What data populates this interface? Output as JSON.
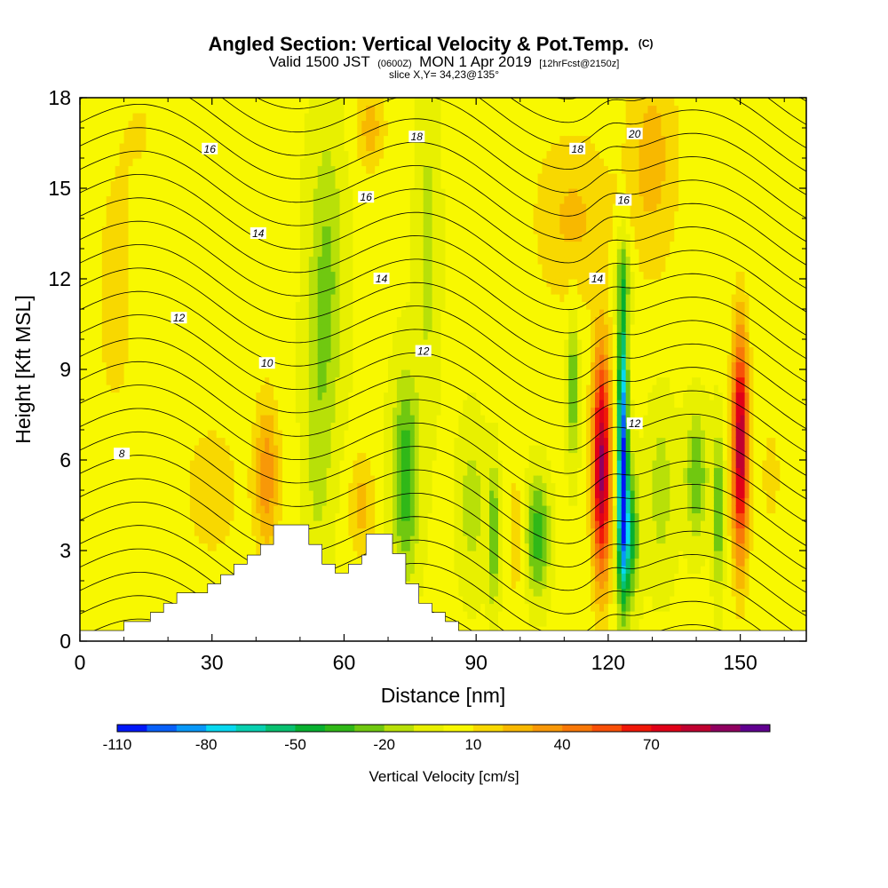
{
  "title": {
    "main": "Angled Section: Vertical Velocity & Pot.Temp.",
    "main_unit": "(C)",
    "valid_prefix": "Valid 1500 JST",
    "valid_utc": "(0600Z)",
    "valid_date": "MON 1 Apr 2019",
    "forecast": "[12hrFcst@2150z]",
    "slice": "slice X,Y= 34,23@135°"
  },
  "chart_data": {
    "type": "heatmap",
    "xlabel": "Distance [nm]",
    "ylabel": "Height [Kft MSL]",
    "xlim": [
      0,
      165
    ],
    "ylim": [
      0,
      18
    ],
    "xticks": [
      "0",
      "30",
      "60",
      "90",
      "120",
      "150"
    ],
    "yticks": [
      "0",
      "3",
      "6",
      "9",
      "12",
      "15",
      "18"
    ],
    "colorbar": {
      "label": "Vertical Velocity [cm/s]",
      "tick_labels": [
        "-110",
        "-80",
        "-50",
        "-20",
        "10",
        "40",
        "70"
      ],
      "levels_min": -110,
      "levels_step": 10,
      "colors": [
        "#0018f8",
        "#0860f8",
        "#0898f8",
        "#08d8f0",
        "#08d0b0",
        "#08c070",
        "#08b030",
        "#30b818",
        "#70c810",
        "#b8e008",
        "#e8f000",
        "#f8f800",
        "#f8d800",
        "#f8b800",
        "#f89808",
        "#f87808",
        "#f85008",
        "#f01808",
        "#e00018",
        "#c00030",
        "#900060",
        "#600090"
      ]
    },
    "contours": {
      "field": "Potential temperature",
      "labels": [
        {
          "text": "8",
          "x": 9.5,
          "y": 6.2
        },
        {
          "text": "10",
          "x": 42.5,
          "y": 9.2
        },
        {
          "text": "12",
          "x": 22.5,
          "y": 10.7
        },
        {
          "text": "14",
          "x": 40.5,
          "y": 13.5
        },
        {
          "text": "16",
          "x": 29.5,
          "y": 16.3
        },
        {
          "text": "16",
          "x": 65.0,
          "y": 14.7
        },
        {
          "text": "18",
          "x": 76.5,
          "y": 16.7
        },
        {
          "text": "14",
          "x": 68.5,
          "y": 12.0
        },
        {
          "text": "12",
          "x": 78.0,
          "y": 9.6
        },
        {
          "text": "14",
          "x": 117.5,
          "y": 12.0
        },
        {
          "text": "18",
          "x": 113.0,
          "y": 16.3
        },
        {
          "text": "16",
          "x": 123.5,
          "y": 14.6
        },
        {
          "text": "20",
          "x": 126.0,
          "y": 16.8
        },
        {
          "text": "12",
          "x": 126.0,
          "y": 7.2
        }
      ]
    },
    "terrain_steps": [
      [
        0,
        0.35
      ],
      [
        10,
        0.35
      ],
      [
        10,
        0.65
      ],
      [
        16,
        0.65
      ],
      [
        16,
        0.95
      ],
      [
        19,
        0.95
      ],
      [
        19,
        1.25
      ],
      [
        22,
        1.25
      ],
      [
        22,
        1.6
      ],
      [
        29,
        1.6
      ],
      [
        29,
        1.9
      ],
      [
        32,
        1.9
      ],
      [
        32,
        2.2
      ],
      [
        35,
        2.2
      ],
      [
        35,
        2.55
      ],
      [
        38,
        2.55
      ],
      [
        38,
        2.85
      ],
      [
        41,
        2.85
      ],
      [
        41,
        3.2
      ],
      [
        44,
        3.2
      ],
      [
        44,
        3.85
      ],
      [
        52,
        3.85
      ],
      [
        52,
        3.2
      ],
      [
        55,
        3.2
      ],
      [
        55,
        2.55
      ],
      [
        58,
        2.55
      ],
      [
        58,
        2.25
      ],
      [
        61,
        2.25
      ],
      [
        61,
        2.55
      ],
      [
        64,
        2.55
      ],
      [
        64,
        2.85
      ],
      [
        65,
        2.85
      ],
      [
        65,
        3.55
      ],
      [
        71,
        3.55
      ],
      [
        71,
        2.9
      ],
      [
        74,
        2.9
      ],
      [
        74,
        1.9
      ],
      [
        77,
        1.9
      ],
      [
        77,
        1.25
      ],
      [
        80,
        1.25
      ],
      [
        80,
        0.95
      ],
      [
        83,
        0.95
      ],
      [
        83,
        0.65
      ],
      [
        86,
        0.65
      ],
      [
        86,
        0.35
      ],
      [
        165,
        0.35
      ]
    ],
    "blobs": [
      {
        "x": 8,
        "y": 11.5,
        "sx": 6,
        "sy": 6,
        "w": 11
      },
      {
        "x": 30,
        "y": 5,
        "sx": 8,
        "sy": 3,
        "w": 12
      },
      {
        "x": 42.5,
        "y": 5.5,
        "sx": 2.8,
        "sy": 2.6,
        "w": 34
      },
      {
        "x": 56,
        "y": 12,
        "sx": 4,
        "sy": 5,
        "w": -25
      },
      {
        "x": 54,
        "y": 6,
        "sx": 3,
        "sy": 4,
        "w": -14
      },
      {
        "x": 64,
        "y": 4.5,
        "sx": 3,
        "sy": 1.8,
        "w": 22
      },
      {
        "x": 74,
        "y": 5.5,
        "sx": 3,
        "sy": 3.2,
        "w": -40
      },
      {
        "x": 66,
        "y": 17,
        "sx": 3.5,
        "sy": 1.5,
        "w": 22
      },
      {
        "x": 79,
        "y": 13,
        "sx": 2.5,
        "sy": 5,
        "w": -17
      },
      {
        "x": 89,
        "y": 4.5,
        "sx": 3,
        "sy": 2.5,
        "w": -18
      },
      {
        "x": 94,
        "y": 3.5,
        "sx": 1.2,
        "sy": 2.2,
        "w": -36
      },
      {
        "x": 99,
        "y": 3.5,
        "sx": 2,
        "sy": 2.5,
        "w": 14
      },
      {
        "x": 104,
        "y": 3.5,
        "sx": 2.5,
        "sy": 1.8,
        "w": -42
      },
      {
        "x": 112,
        "y": 8.5,
        "sx": 1.3,
        "sy": 2.5,
        "w": -32
      },
      {
        "x": 118.5,
        "y": 5.8,
        "sx": 2.1,
        "sy": 3.8,
        "w": 92
      },
      {
        "x": 123.3,
        "y": 6.5,
        "sx": 1.1,
        "sy": 4.5,
        "w": -100
      },
      {
        "x": 124.5,
        "y": 3.5,
        "sx": 2.2,
        "sy": 2.2,
        "w": -55
      },
      {
        "x": 123.5,
        "y": 12,
        "sx": 2,
        "sy": 1.5,
        "w": -25
      },
      {
        "x": 132,
        "y": 5,
        "sx": 3,
        "sy": 2.8,
        "w": -18
      },
      {
        "x": 140,
        "y": 5.5,
        "sx": 2.5,
        "sy": 2,
        "w": -32
      },
      {
        "x": 145,
        "y": 4.3,
        "sx": 1.2,
        "sy": 2.5,
        "w": -35
      },
      {
        "x": 150,
        "y": 6.5,
        "sx": 1.9,
        "sy": 3.8,
        "w": 88
      },
      {
        "x": 112,
        "y": 14,
        "sx": 9,
        "sy": 3,
        "w": 20
      },
      {
        "x": 130,
        "y": 16,
        "sx": 6,
        "sy": 4,
        "w": 22
      },
      {
        "x": 157,
        "y": 5.5,
        "sx": 3.5,
        "sy": 3,
        "w": 10
      },
      {
        "x": 15,
        "y": 17,
        "sx": 6,
        "sy": 2,
        "w": 7
      }
    ]
  }
}
